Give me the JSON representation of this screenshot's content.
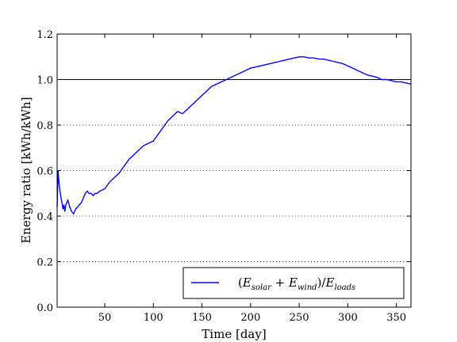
{
  "chart_data": {
    "type": "line",
    "title": "",
    "xlabel": "Time [day]",
    "ylabel": "Energy ratio [kWh/kWh]",
    "xlim": [
      1,
      365
    ],
    "ylim": [
      0.0,
      1.2
    ],
    "x_ticks": [
      50,
      100,
      150,
      200,
      250,
      300,
      350
    ],
    "x_tick_labels": [
      "50",
      "100",
      "150",
      "200",
      "250",
      "300",
      "350"
    ],
    "y_ticks": [
      0.0,
      0.2,
      0.4,
      0.6,
      0.8,
      1.0,
      1.2
    ],
    "y_tick_labels": [
      "0.0",
      "0.2",
      "0.4",
      "0.6",
      "0.8",
      "1.0",
      "1.2"
    ],
    "grid": "horizontal dotted",
    "reference_line": {
      "y": 1.0,
      "color": "#000000"
    },
    "legend": {
      "placement": "lower-right",
      "entries": [
        {
          "label": "(E_solar + E_wind)/E_loads",
          "color": "#0000ff"
        }
      ]
    },
    "series": [
      {
        "color": "#0000ff",
        "x": [
          1,
          2,
          3,
          4,
          5,
          6,
          7,
          8,
          9,
          10,
          11,
          12,
          14,
          16,
          18,
          20,
          22,
          24,
          26,
          28,
          30,
          32,
          34,
          36,
          38,
          40,
          42,
          45,
          50,
          55,
          60,
          65,
          70,
          75,
          80,
          85,
          90,
          95,
          100,
          105,
          110,
          115,
          120,
          125,
          130,
          135,
          140,
          145,
          150,
          155,
          160,
          165,
          170,
          175,
          180,
          185,
          190,
          195,
          200,
          205,
          210,
          215,
          220,
          225,
          230,
          235,
          240,
          245,
          250,
          255,
          260,
          265,
          270,
          275,
          280,
          285,
          290,
          295,
          300,
          305,
          310,
          315,
          320,
          325,
          330,
          335,
          340,
          345,
          350,
          355,
          360,
          365
        ],
        "y": [
          0.44,
          0.6,
          0.54,
          0.51,
          0.48,
          0.46,
          0.43,
          0.45,
          0.42,
          0.45,
          0.46,
          0.47,
          0.44,
          0.42,
          0.41,
          0.43,
          0.44,
          0.45,
          0.46,
          0.48,
          0.5,
          0.51,
          0.5,
          0.5,
          0.49,
          0.5,
          0.5,
          0.51,
          0.52,
          0.55,
          0.57,
          0.59,
          0.62,
          0.65,
          0.67,
          0.69,
          0.71,
          0.72,
          0.73,
          0.76,
          0.79,
          0.82,
          0.84,
          0.86,
          0.85,
          0.87,
          0.89,
          0.91,
          0.93,
          0.95,
          0.97,
          0.98,
          0.99,
          1.0,
          1.01,
          1.02,
          1.03,
          1.04,
          1.05,
          1.055,
          1.06,
          1.065,
          1.07,
          1.075,
          1.08,
          1.085,
          1.09,
          1.095,
          1.1,
          1.1,
          1.095,
          1.095,
          1.09,
          1.09,
          1.085,
          1.08,
          1.075,
          1.07,
          1.06,
          1.05,
          1.04,
          1.03,
          1.02,
          1.015,
          1.01,
          1.0,
          1.0,
          0.995,
          0.99,
          0.99,
          0.985,
          0.98
        ]
      }
    ]
  }
}
